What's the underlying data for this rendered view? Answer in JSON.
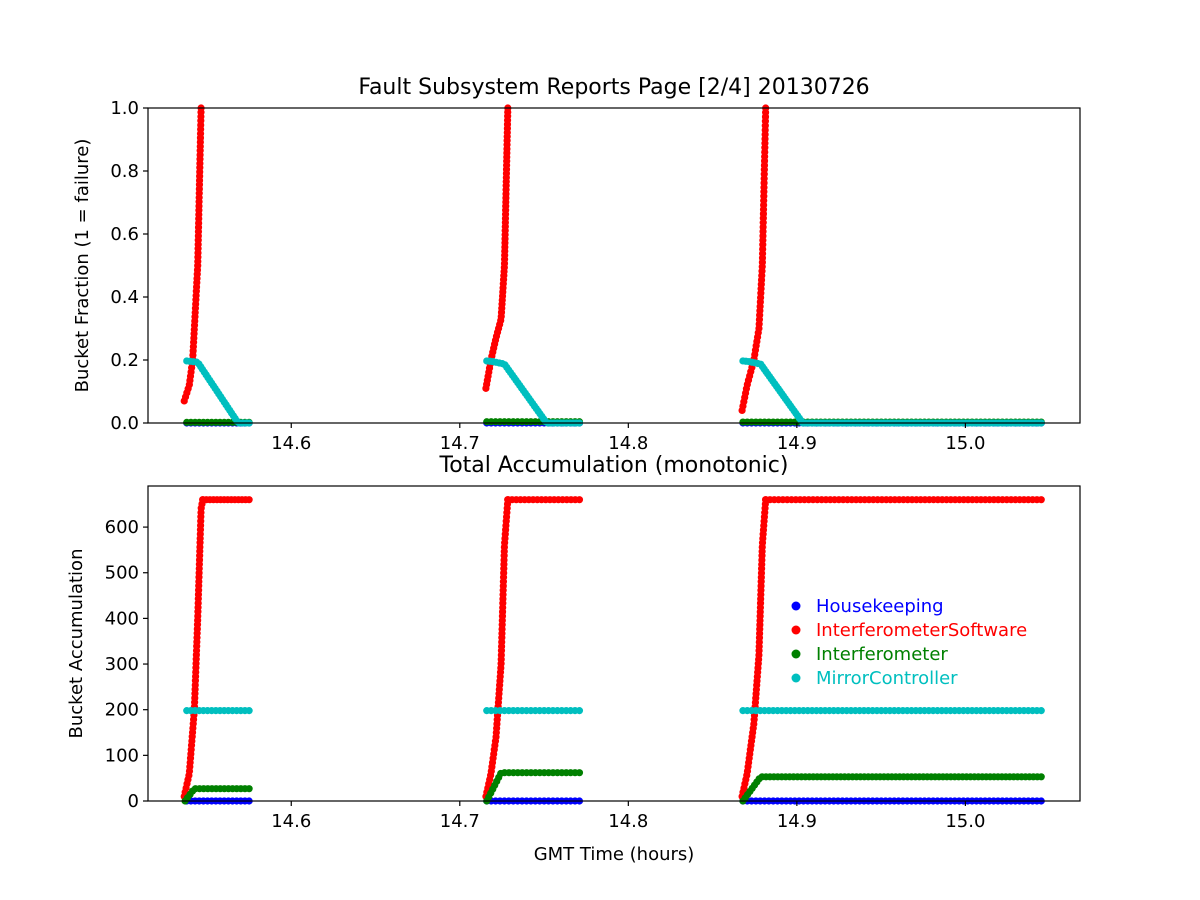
{
  "chart_data": [
    {
      "type": "scatter",
      "title": "Fault Subsystem Reports Page [2/4] 20130726",
      "xlabel": "",
      "ylabel": "Bucket Fraction (1 = failure)",
      "xlim": [
        14.515,
        15.068
      ],
      "ylim": [
        0,
        1
      ],
      "xticks": [
        14.6,
        14.7,
        14.8,
        14.9,
        15.0
      ],
      "xtick_labels": [
        "14.6",
        "14.7",
        "14.8",
        "14.9",
        "15.0"
      ],
      "yticks": [
        0,
        0.2,
        0.4,
        0.6,
        0.8,
        1.0
      ],
      "ytick_labels": [
        "0.0",
        "0.2",
        "0.4",
        "0.6",
        "0.8",
        "1.0"
      ],
      "grid": false,
      "series": [
        {
          "name": "Housekeeping",
          "color": "#0000ff",
          "segments": [
            {
              "x": [
                14.538,
                14.575
              ],
              "y": [
                0,
                0
              ],
              "n": 16
            },
            {
              "x": [
                14.716,
                14.771
              ],
              "y": [
                0,
                0
              ],
              "n": 22
            },
            {
              "x": [
                14.868,
                15.045
              ],
              "y": [
                0,
                0
              ],
              "n": 70
            }
          ]
        },
        {
          "name": "InterferometerSoftware",
          "color": "#ff0000",
          "segments": [
            {
              "x": [
                14.5365,
                14.5395,
                14.5415,
                14.5445,
                14.5465
              ],
              "y": [
                0.07,
                0.12,
                0.2,
                0.5,
                1.0
              ],
              "n": 70
            },
            {
              "x": [
                14.7155,
                14.7185,
                14.7215,
                14.7245,
                14.7265,
                14.7285
              ],
              "y": [
                0.11,
                0.2,
                0.27,
                0.33,
                0.5,
                1.0
              ],
              "n": 70
            },
            {
              "x": [
                14.8675,
                14.8705,
                14.8745,
                14.8775,
                14.8795,
                14.8815
              ],
              "y": [
                0.04,
                0.12,
                0.2,
                0.3,
                0.5,
                1.0
              ],
              "n": 70
            }
          ]
        },
        {
          "name": "Interferometer",
          "color": "#008000",
          "segments": [
            {
              "x": [
                14.538,
                14.575
              ],
              "y": [
                0.002,
                0.002
              ],
              "n": 16
            },
            {
              "x": [
                14.716,
                14.771
              ],
              "y": [
                0.004,
                0.004
              ],
              "n": 22
            },
            {
              "x": [
                14.868,
                15.045
              ],
              "y": [
                0.003,
                0.003
              ],
              "n": 70
            }
          ]
        },
        {
          "name": "MirrorController",
          "color": "#00bfbf",
          "segments": [
            {
              "x": [
                14.538,
                14.5445,
                14.5685,
                14.575
              ],
              "y": [
                0.197,
                0.193,
                0.0,
                0.0
              ],
              "n": 30
            },
            {
              "x": [
                14.716,
                14.7195,
                14.7265,
                14.7515,
                14.771
              ],
              "y": [
                0.197,
                0.195,
                0.187,
                0.0,
                0.0
              ],
              "n": 40
            },
            {
              "x": [
                14.868,
                14.8715,
                14.8785,
                14.9035,
                15.045
              ],
              "y": [
                0.197,
                0.195,
                0.187,
                0.0,
                0.0
              ],
              "n": 110
            }
          ]
        }
      ]
    },
    {
      "type": "scatter",
      "title": "Total Accumulation (monotonic)",
      "xlabel": "GMT Time (hours)",
      "ylabel": "Bucket Accumulation",
      "xlim": [
        14.515,
        15.068
      ],
      "ylim": [
        0,
        690
      ],
      "xticks": [
        14.6,
        14.7,
        14.8,
        14.9,
        15.0
      ],
      "xtick_labels": [
        "14.6",
        "14.7",
        "14.8",
        "14.9",
        "15.0"
      ],
      "yticks": [
        0,
        100,
        200,
        300,
        400,
        500,
        600
      ],
      "ytick_labels": [
        "0",
        "100",
        "200",
        "300",
        "400",
        "500",
        "600"
      ],
      "grid": false,
      "legend": {
        "placement": "center-right",
        "entries": [
          "Housekeeping",
          "InterferometerSoftware",
          "Interferometer",
          "MirrorController"
        ]
      },
      "series": [
        {
          "name": "Housekeeping",
          "color": "#0000ff",
          "segments": [
            {
              "x": [
                14.538,
                14.575
              ],
              "y": [
                0,
                0
              ],
              "n": 16
            },
            {
              "x": [
                14.716,
                14.771
              ],
              "y": [
                0,
                0
              ],
              "n": 22
            },
            {
              "x": [
                14.868,
                15.045
              ],
              "y": [
                0,
                0
              ],
              "n": 70
            }
          ]
        },
        {
          "name": "InterferometerSoftware",
          "color": "#ff0000",
          "segments": [
            {
              "x": [
                14.5365,
                14.5395,
                14.5425,
                14.5445,
                14.5465,
                14.5475
              ],
              "y": [
                10,
                60,
                200,
                400,
                640,
                660
              ],
              "n": 70
            },
            {
              "x": [
                14.7155,
                14.7185,
                14.7215,
                14.7245,
                14.7265,
                14.7285
              ],
              "y": [
                10,
                60,
                140,
                300,
                560,
                660
              ],
              "n": 70
            },
            {
              "x": [
                14.8675,
                14.8705,
                14.8745,
                14.8775,
                14.8795,
                14.8815
              ],
              "y": [
                10,
                60,
                170,
                320,
                560,
                660
              ],
              "n": 70
            },
            {
              "x": [
                14.5475,
                14.575
              ],
              "y": [
                660,
                660
              ],
              "n": 14
            },
            {
              "x": [
                14.7285,
                14.771
              ],
              "y": [
                660,
                660
              ],
              "n": 18
            },
            {
              "x": [
                14.8815,
                15.045
              ],
              "y": [
                660,
                660
              ],
              "n": 65
            }
          ]
        },
        {
          "name": "Interferometer",
          "color": "#008000",
          "segments": [
            {
              "x": [
                14.537,
                14.5425,
                14.575
              ],
              "y": [
                0,
                27,
                27
              ],
              "n": 18
            },
            {
              "x": [
                14.716,
                14.7245,
                14.771
              ],
              "y": [
                0,
                62,
                62
              ],
              "n": 26
            },
            {
              "x": [
                14.868,
                14.8785,
                15.045
              ],
              "y": [
                0,
                53,
                53
              ],
              "n": 80
            }
          ]
        },
        {
          "name": "MirrorController",
          "color": "#00bfbf",
          "segments": [
            {
              "x": [
                14.538,
                14.575
              ],
              "y": [
                198,
                198
              ],
              "n": 16
            },
            {
              "x": [
                14.716,
                14.771
              ],
              "y": [
                198,
                198
              ],
              "n": 22
            },
            {
              "x": [
                14.868,
                15.045
              ],
              "y": [
                198,
                198
              ],
              "n": 70
            }
          ]
        }
      ]
    }
  ]
}
